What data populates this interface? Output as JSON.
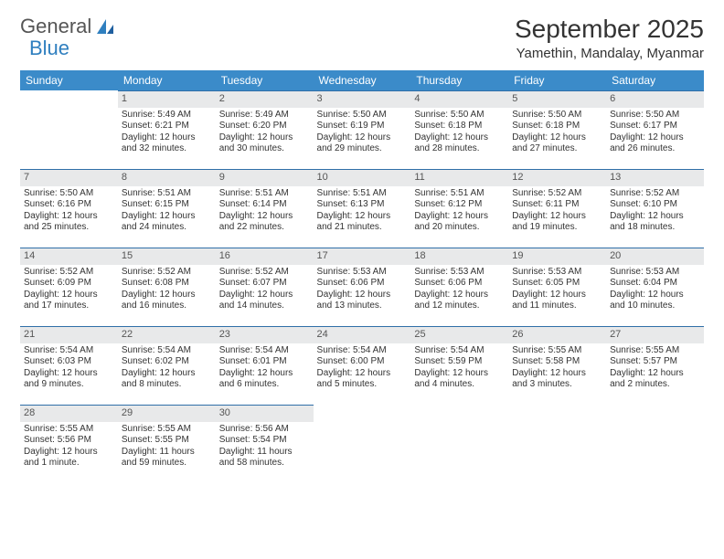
{
  "logo": {
    "text1": "General",
    "text2": "Blue"
  },
  "title": "September 2025",
  "location": "Yamethin, Mandalay, Myanmar",
  "colors": {
    "header_bg": "#3b8bc9",
    "header_text": "#ffffff",
    "daynum_bg": "#e8e9ea",
    "border": "#2f6fa8",
    "logo_gray": "#555555",
    "logo_blue": "#2f7fbf"
  },
  "weekdays": [
    "Sunday",
    "Monday",
    "Tuesday",
    "Wednesday",
    "Thursday",
    "Friday",
    "Saturday"
  ],
  "weeks": [
    [
      null,
      {
        "n": "1",
        "sr": "Sunrise: 5:49 AM",
        "ss": "Sunset: 6:21 PM",
        "dl": "Daylight: 12 hours and 32 minutes."
      },
      {
        "n": "2",
        "sr": "Sunrise: 5:49 AM",
        "ss": "Sunset: 6:20 PM",
        "dl": "Daylight: 12 hours and 30 minutes."
      },
      {
        "n": "3",
        "sr": "Sunrise: 5:50 AM",
        "ss": "Sunset: 6:19 PM",
        "dl": "Daylight: 12 hours and 29 minutes."
      },
      {
        "n": "4",
        "sr": "Sunrise: 5:50 AM",
        "ss": "Sunset: 6:18 PM",
        "dl": "Daylight: 12 hours and 28 minutes."
      },
      {
        "n": "5",
        "sr": "Sunrise: 5:50 AM",
        "ss": "Sunset: 6:18 PM",
        "dl": "Daylight: 12 hours and 27 minutes."
      },
      {
        "n": "6",
        "sr": "Sunrise: 5:50 AM",
        "ss": "Sunset: 6:17 PM",
        "dl": "Daylight: 12 hours and 26 minutes."
      }
    ],
    [
      {
        "n": "7",
        "sr": "Sunrise: 5:50 AM",
        "ss": "Sunset: 6:16 PM",
        "dl": "Daylight: 12 hours and 25 minutes."
      },
      {
        "n": "8",
        "sr": "Sunrise: 5:51 AM",
        "ss": "Sunset: 6:15 PM",
        "dl": "Daylight: 12 hours and 24 minutes."
      },
      {
        "n": "9",
        "sr": "Sunrise: 5:51 AM",
        "ss": "Sunset: 6:14 PM",
        "dl": "Daylight: 12 hours and 22 minutes."
      },
      {
        "n": "10",
        "sr": "Sunrise: 5:51 AM",
        "ss": "Sunset: 6:13 PM",
        "dl": "Daylight: 12 hours and 21 minutes."
      },
      {
        "n": "11",
        "sr": "Sunrise: 5:51 AM",
        "ss": "Sunset: 6:12 PM",
        "dl": "Daylight: 12 hours and 20 minutes."
      },
      {
        "n": "12",
        "sr": "Sunrise: 5:52 AM",
        "ss": "Sunset: 6:11 PM",
        "dl": "Daylight: 12 hours and 19 minutes."
      },
      {
        "n": "13",
        "sr": "Sunrise: 5:52 AM",
        "ss": "Sunset: 6:10 PM",
        "dl": "Daylight: 12 hours and 18 minutes."
      }
    ],
    [
      {
        "n": "14",
        "sr": "Sunrise: 5:52 AM",
        "ss": "Sunset: 6:09 PM",
        "dl": "Daylight: 12 hours and 17 minutes."
      },
      {
        "n": "15",
        "sr": "Sunrise: 5:52 AM",
        "ss": "Sunset: 6:08 PM",
        "dl": "Daylight: 12 hours and 16 minutes."
      },
      {
        "n": "16",
        "sr": "Sunrise: 5:52 AM",
        "ss": "Sunset: 6:07 PM",
        "dl": "Daylight: 12 hours and 14 minutes."
      },
      {
        "n": "17",
        "sr": "Sunrise: 5:53 AM",
        "ss": "Sunset: 6:06 PM",
        "dl": "Daylight: 12 hours and 13 minutes."
      },
      {
        "n": "18",
        "sr": "Sunrise: 5:53 AM",
        "ss": "Sunset: 6:06 PM",
        "dl": "Daylight: 12 hours and 12 minutes."
      },
      {
        "n": "19",
        "sr": "Sunrise: 5:53 AM",
        "ss": "Sunset: 6:05 PM",
        "dl": "Daylight: 12 hours and 11 minutes."
      },
      {
        "n": "20",
        "sr": "Sunrise: 5:53 AM",
        "ss": "Sunset: 6:04 PM",
        "dl": "Daylight: 12 hours and 10 minutes."
      }
    ],
    [
      {
        "n": "21",
        "sr": "Sunrise: 5:54 AM",
        "ss": "Sunset: 6:03 PM",
        "dl": "Daylight: 12 hours and 9 minutes."
      },
      {
        "n": "22",
        "sr": "Sunrise: 5:54 AM",
        "ss": "Sunset: 6:02 PM",
        "dl": "Daylight: 12 hours and 8 minutes."
      },
      {
        "n": "23",
        "sr": "Sunrise: 5:54 AM",
        "ss": "Sunset: 6:01 PM",
        "dl": "Daylight: 12 hours and 6 minutes."
      },
      {
        "n": "24",
        "sr": "Sunrise: 5:54 AM",
        "ss": "Sunset: 6:00 PM",
        "dl": "Daylight: 12 hours and 5 minutes."
      },
      {
        "n": "25",
        "sr": "Sunrise: 5:54 AM",
        "ss": "Sunset: 5:59 PM",
        "dl": "Daylight: 12 hours and 4 minutes."
      },
      {
        "n": "26",
        "sr": "Sunrise: 5:55 AM",
        "ss": "Sunset: 5:58 PM",
        "dl": "Daylight: 12 hours and 3 minutes."
      },
      {
        "n": "27",
        "sr": "Sunrise: 5:55 AM",
        "ss": "Sunset: 5:57 PM",
        "dl": "Daylight: 12 hours and 2 minutes."
      }
    ],
    [
      {
        "n": "28",
        "sr": "Sunrise: 5:55 AM",
        "ss": "Sunset: 5:56 PM",
        "dl": "Daylight: 12 hours and 1 minute."
      },
      {
        "n": "29",
        "sr": "Sunrise: 5:55 AM",
        "ss": "Sunset: 5:55 PM",
        "dl": "Daylight: 11 hours and 59 minutes."
      },
      {
        "n": "30",
        "sr": "Sunrise: 5:56 AM",
        "ss": "Sunset: 5:54 PM",
        "dl": "Daylight: 11 hours and 58 minutes."
      },
      null,
      null,
      null,
      null
    ]
  ]
}
